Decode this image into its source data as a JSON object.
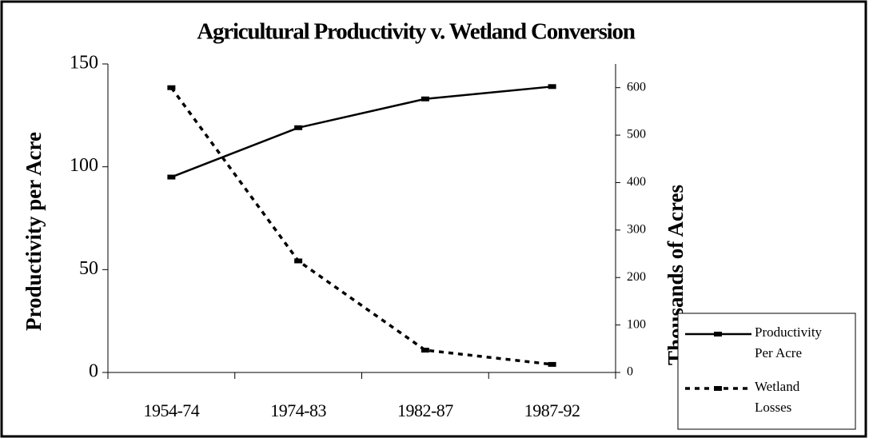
{
  "chart_data": {
    "type": "line",
    "title": "Agricultural Productivity v. Wetland Conversion",
    "categories": [
      "1954-74",
      "1974-83",
      "1982-87",
      "1987-92"
    ],
    "series": [
      {
        "name": "Productivity Per Acre",
        "color": "#000000",
        "dash": "solid",
        "values": [
          95,
          119,
          133,
          139
        ]
      },
      {
        "name": "Wetland Losses",
        "color": "#000000",
        "dash": "dashed",
        "axis": "y2",
        "values": [
          600,
          235,
          47,
          17
        ]
      }
    ],
    "ylabel": "Productivity per Acre",
    "y2label": "Thousands of Acres",
    "ylim": [
      0,
      150
    ],
    "yticks": [
      0,
      50,
      100,
      150
    ],
    "y2lim": [
      0,
      650
    ],
    "y2ticks": [
      0,
      100,
      200,
      300,
      400,
      500,
      600
    ],
    "legend": "bottom-right"
  }
}
